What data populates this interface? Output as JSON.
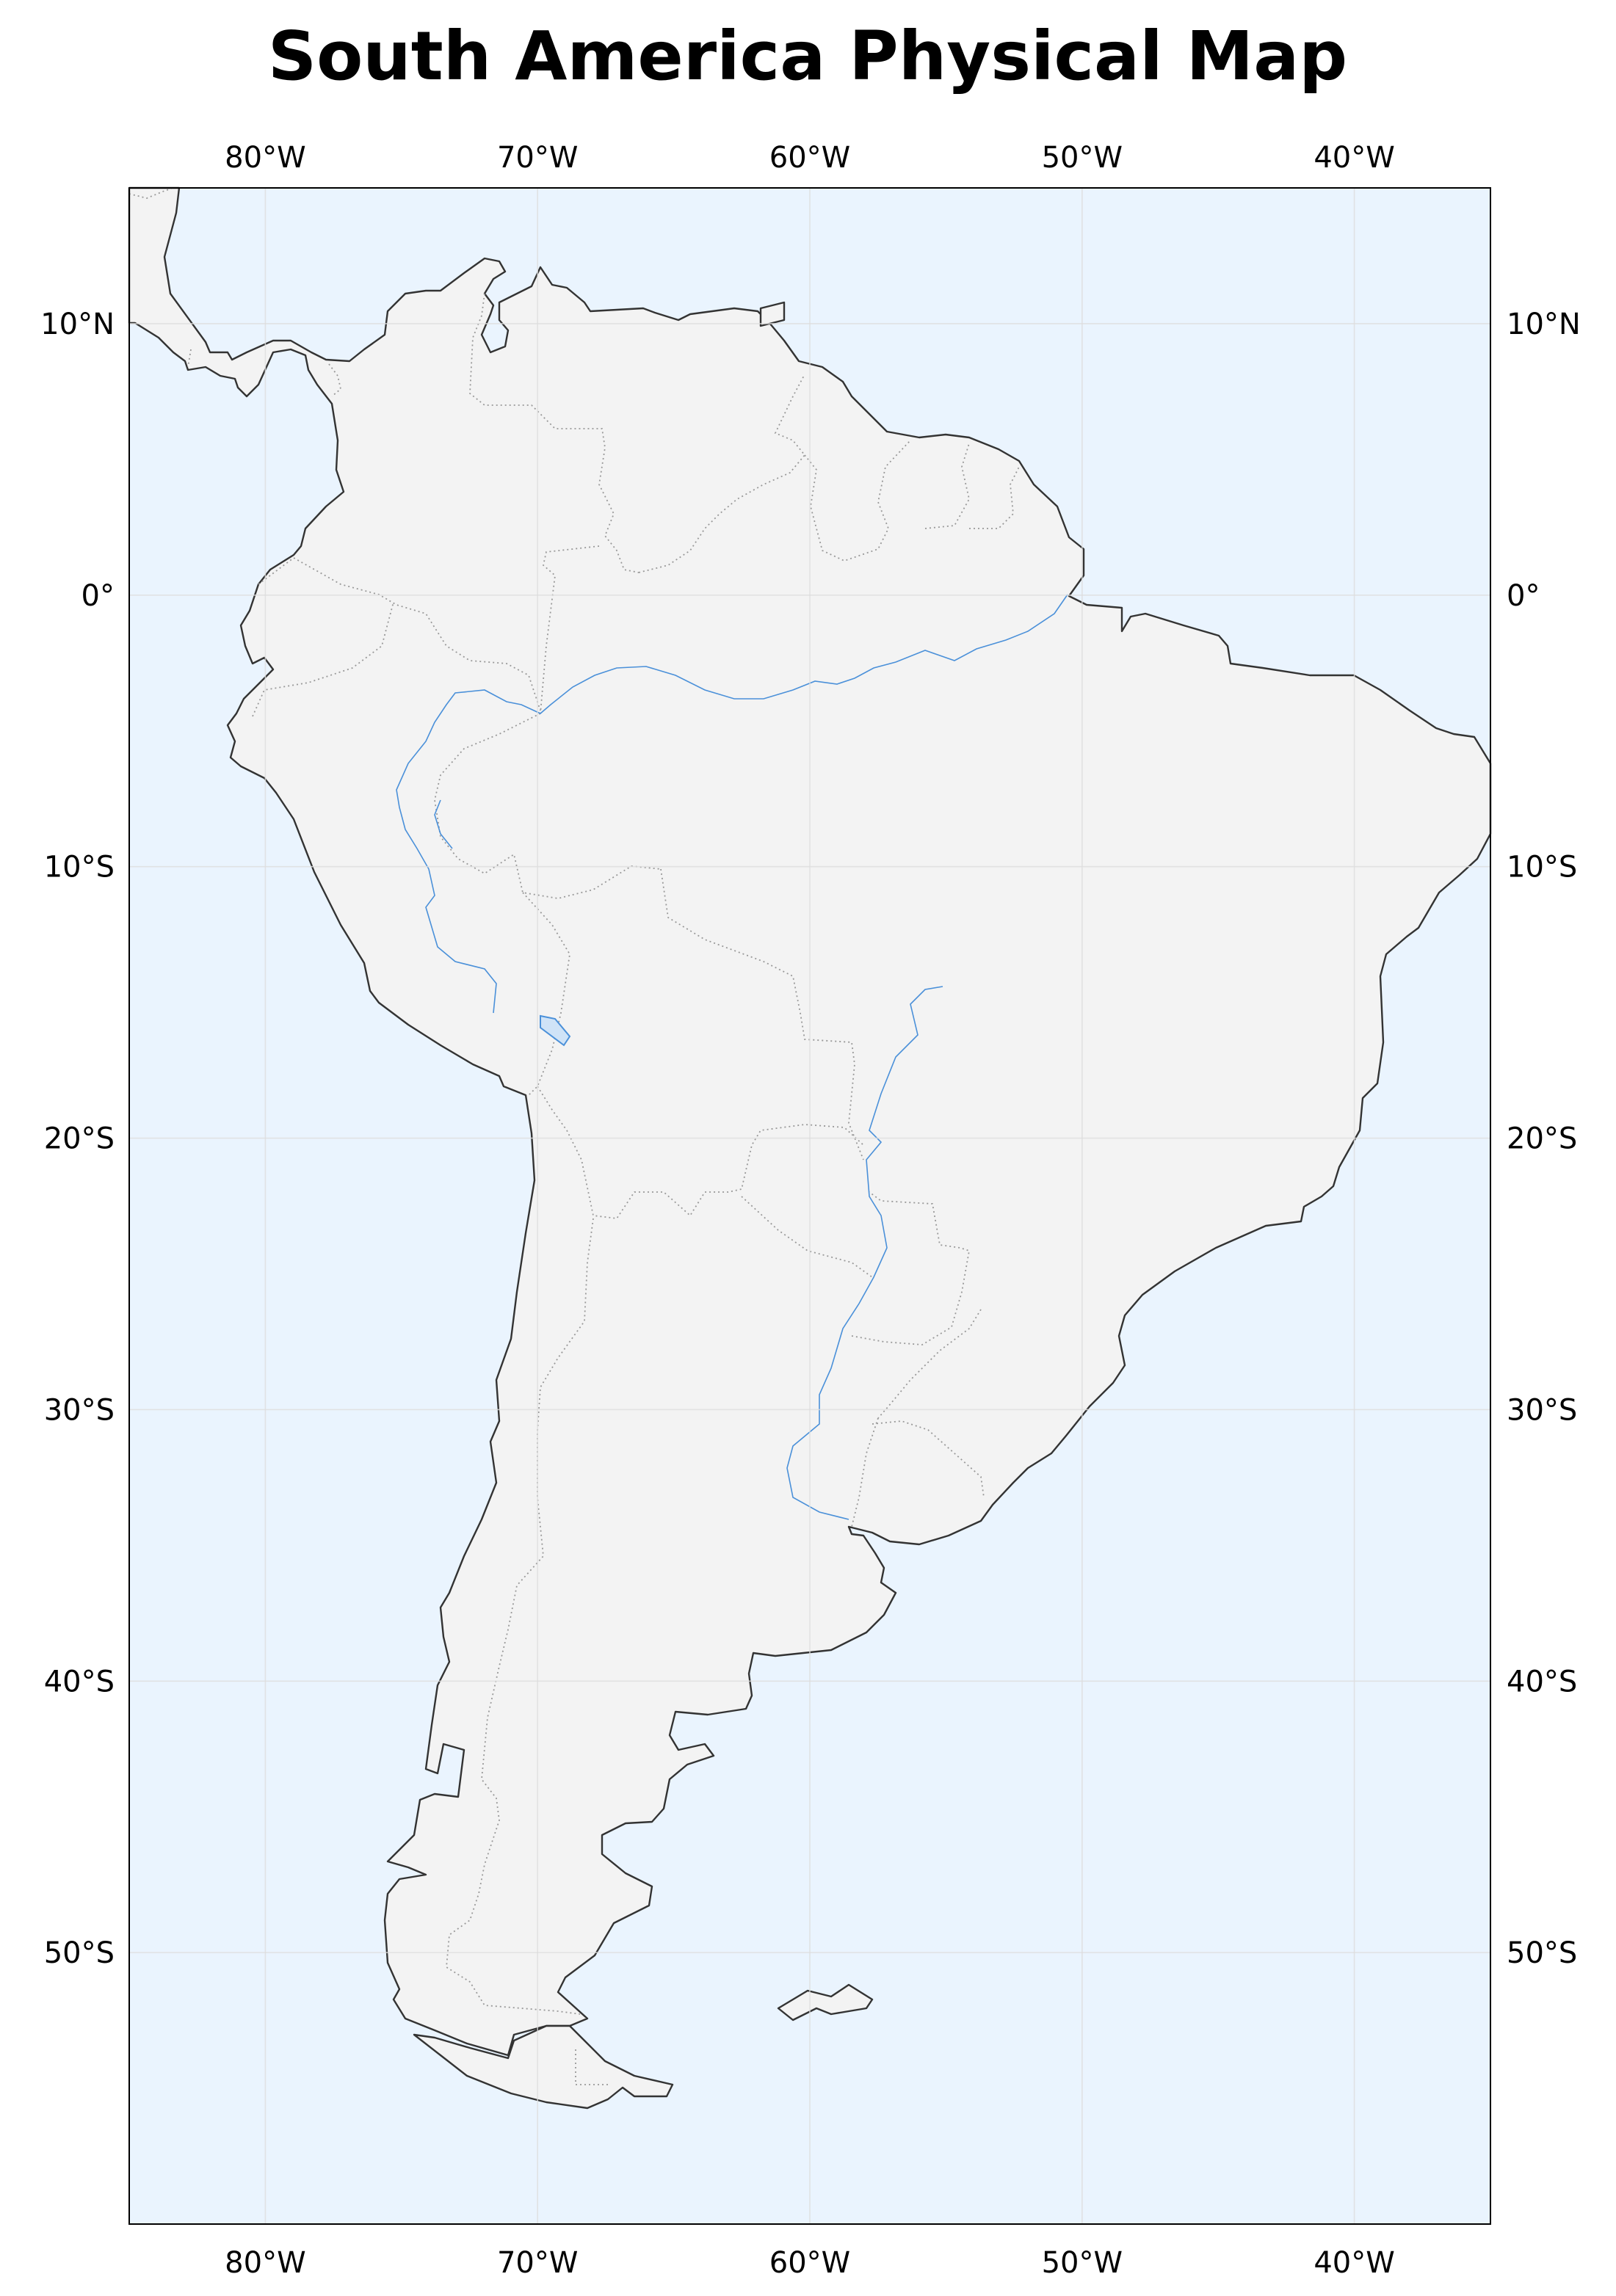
{
  "title": "South America Physical Map",
  "map": {
    "projection": "PlateCarree",
    "extent": {
      "lon_min": -85,
      "lon_max": -35,
      "lat_min": -60,
      "lat_max": 15
    },
    "gridlines": true,
    "colors": {
      "ocean": "#eaf4fe",
      "land": "#f3f3f3",
      "coastline": "#333333",
      "borders": "#999999",
      "rivers": "#4a90d9",
      "lakes": "#cfe3f7",
      "grid": "#dddddd"
    },
    "features": [
      "coastline",
      "borders (dotted)",
      "rivers",
      "lakes"
    ]
  },
  "x_ticks": [
    {
      "value": -80,
      "label": "80°W"
    },
    {
      "value": -70,
      "label": "70°W"
    },
    {
      "value": -60,
      "label": "60°W"
    },
    {
      "value": -50,
      "label": "50°W"
    },
    {
      "value": -40,
      "label": "40°W"
    }
  ],
  "y_ticks": [
    {
      "value": 10,
      "label": "10°N"
    },
    {
      "value": 0,
      "label": "0°"
    },
    {
      "value": -10,
      "label": "10°S"
    },
    {
      "value": -20,
      "label": "20°S"
    },
    {
      "value": -30,
      "label": "30°S"
    },
    {
      "value": -40,
      "label": "40°S"
    },
    {
      "value": -50,
      "label": "50°S"
    }
  ]
}
